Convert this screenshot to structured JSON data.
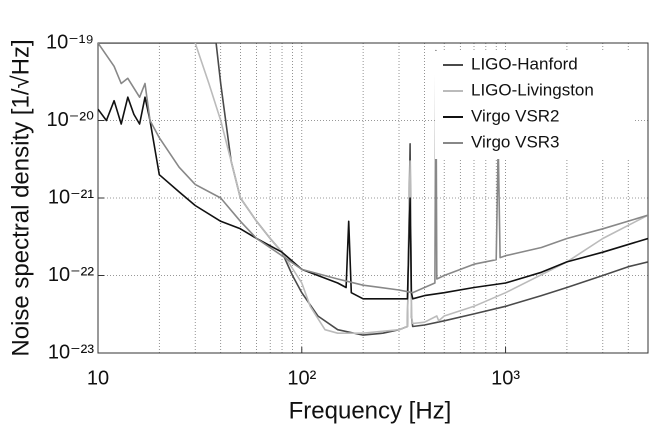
{
  "chart_data": {
    "type": "line",
    "xlabel": "Frequency [Hz]",
    "ylabel": "Noise spectral density [1/√Hz]",
    "xscale": "log",
    "yscale": "log",
    "xlim": [
      10,
      5000
    ],
    "ylim": [
      1e-23,
      1e-19
    ],
    "xticks": [
      {
        "value": 10,
        "label": "10"
      },
      {
        "value": 100,
        "label": "10²"
      },
      {
        "value": 1000,
        "label": "10³"
      }
    ],
    "yticks": [
      {
        "value": 1e-23,
        "label": "10⁻²³"
      },
      {
        "value": 1e-22,
        "label": "10⁻²²"
      },
      {
        "value": 1e-21,
        "label": "10⁻²¹"
      },
      {
        "value": 1e-20,
        "label": "10⁻²⁰"
      },
      {
        "value": 1e-19,
        "label": "10⁻¹⁹"
      }
    ],
    "grid": true,
    "legend": "upper right",
    "series": [
      {
        "name": "LIGO-Hanford",
        "color": "#4a4a4a",
        "x": [
          10,
          20,
          30,
          36,
          38,
          40,
          45,
          50,
          60,
          70,
          80,
          90,
          100,
          120,
          150,
          200,
          250,
          300,
          330,
          340,
          345,
          350,
          400,
          500,
          700,
          1000,
          1500,
          2000,
          3000,
          4000,
          5000
        ],
        "values": [
          1e-19,
          1e-19,
          1e-19,
          1e-19,
          1e-19,
          3e-20,
          3e-21,
          1e-21,
          5e-22,
          3e-22,
          2e-22,
          1e-22,
          6e-23,
          3e-23,
          2e-23,
          1.7e-23,
          1.8e-23,
          2e-23,
          2.2e-23,
          5e-21,
          3e-23,
          2.2e-23,
          2.3e-23,
          2.6e-23,
          3.2e-23,
          4e-23,
          5.5e-23,
          7e-23,
          1e-22,
          1.3e-22,
          1.5e-22
        ]
      },
      {
        "name": "LIGO-Livingston",
        "color": "#bbbbbb",
        "x": [
          30,
          35,
          40,
          45,
          50,
          60,
          70,
          80,
          100,
          110,
          130,
          150,
          200,
          300,
          330,
          340,
          345,
          350,
          400,
          460,
          470,
          500,
          700,
          1000,
          2000,
          3000,
          5000
        ],
        "values": [
          1e-19,
          3e-20,
          1e-20,
          3e-21,
          1e-21,
          5e-22,
          3e-22,
          2e-22,
          8e-23,
          4e-23,
          2e-23,
          1.8e-23,
          1.8e-23,
          2e-23,
          2.2e-23,
          3e-21,
          3e-23,
          2.4e-23,
          2.5e-23,
          3e-23,
          2.6e-23,
          3e-23,
          4e-23,
          6e-23,
          1.5e-22,
          3e-22,
          6e-22
        ]
      },
      {
        "name": "Virgo VSR2",
        "color": "#111111",
        "x": [
          10,
          11,
          12,
          13,
          14,
          15,
          16,
          17,
          18,
          20,
          25,
          30,
          40,
          50,
          60,
          80,
          100,
          150,
          165,
          170,
          175,
          200,
          300,
          330,
          340,
          345,
          350,
          400,
          500,
          700,
          1000,
          1500,
          2000,
          3000,
          5000
        ],
        "values": [
          1.4e-20,
          1e-20,
          1.8e-20,
          9e-21,
          2e-20,
          1.2e-20,
          9e-21,
          2e-20,
          1e-20,
          2e-21,
          1.2e-21,
          8e-22,
          5e-22,
          4e-22,
          3e-22,
          2e-22,
          1.2e-22,
          8e-23,
          7e-23,
          5e-22,
          6e-23,
          5e-23,
          5e-23,
          5e-23,
          1e-21,
          6e-23,
          5e-23,
          5.5e-23,
          6e-23,
          7e-23,
          8e-23,
          1.1e-22,
          1.5e-22,
          2e-22,
          3e-22
        ]
      },
      {
        "name": "Virgo VSR3",
        "color": "#888888",
        "x": [
          10,
          12,
          13,
          14,
          16,
          17,
          18,
          20,
          25,
          30,
          40,
          50,
          60,
          80,
          100,
          150,
          200,
          300,
          350,
          400,
          450,
          455,
          460,
          500,
          700,
          900,
          920,
          940,
          1000,
          1500,
          2000,
          3000,
          5000
        ],
        "values": [
          1e-19,
          5e-20,
          3e-20,
          3.5e-20,
          2e-20,
          3e-20,
          1e-20,
          6e-21,
          2.5e-21,
          1.5e-21,
          1e-21,
          5e-22,
          3e-22,
          1.8e-22,
          1.2e-22,
          9e-23,
          7.5e-23,
          6.5e-23,
          6e-23,
          7e-23,
          8e-23,
          8e-20,
          9e-23,
          1e-22,
          1.4e-22,
          1.6e-22,
          5e-21,
          1.7e-22,
          1.8e-22,
          2.3e-22,
          3e-22,
          4e-22,
          6e-22
        ]
      }
    ]
  }
}
